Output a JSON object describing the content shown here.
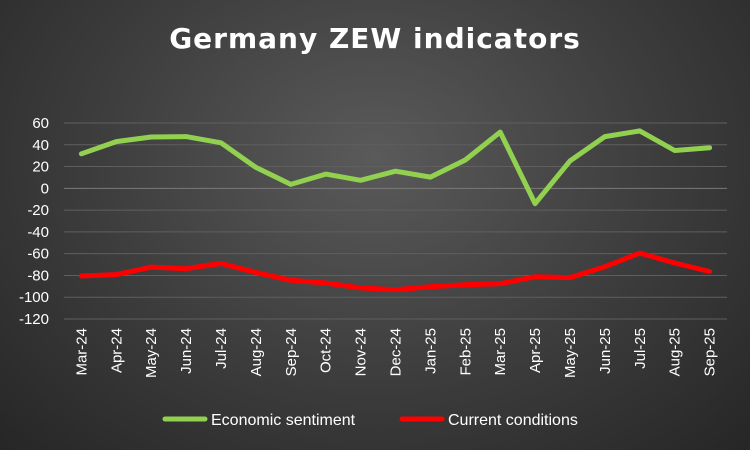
{
  "chart_data": {
    "type": "line",
    "title": "Germany ZEW indicators",
    "xlabel": "",
    "ylabel": "",
    "ylim": [
      -120,
      60
    ],
    "yticks": [
      60,
      40,
      20,
      0,
      -20,
      -40,
      -60,
      -80,
      -100,
      -120
    ],
    "grid": true,
    "legend_position": "bottom",
    "categories": [
      "Mar-24",
      "Apr-24",
      "May-24",
      "Jun-24",
      "Jul-24",
      "Aug-24",
      "Sep-24",
      "Oct-24",
      "Nov-24",
      "Dec-24",
      "Jan-25",
      "Feb-25",
      "Mar-25",
      "Apr-25",
      "May-25",
      "Jun-25",
      "Jul-25",
      "Aug-25",
      "Sep-25"
    ],
    "series": [
      {
        "name": "Economic sentiment",
        "color": "#92d050",
        "values": [
          31.7,
          42.9,
          47.1,
          47.5,
          41.8,
          19.2,
          3.6,
          13.1,
          7.4,
          15.7,
          10.3,
          26.0,
          51.6,
          -14.0,
          25.2,
          47.5,
          52.7,
          34.7,
          37.3
        ]
      },
      {
        "name": "Current conditions",
        "color": "#ff0000",
        "values": [
          -80.5,
          -79.2,
          -72.3,
          -73.8,
          -68.9,
          -77.3,
          -84.5,
          -86.9,
          -91.4,
          -93.1,
          -90.4,
          -88.5,
          -87.6,
          -81.2,
          -82.0,
          -72.0,
          -59.5,
          -68.6,
          -76.4
        ]
      }
    ]
  }
}
